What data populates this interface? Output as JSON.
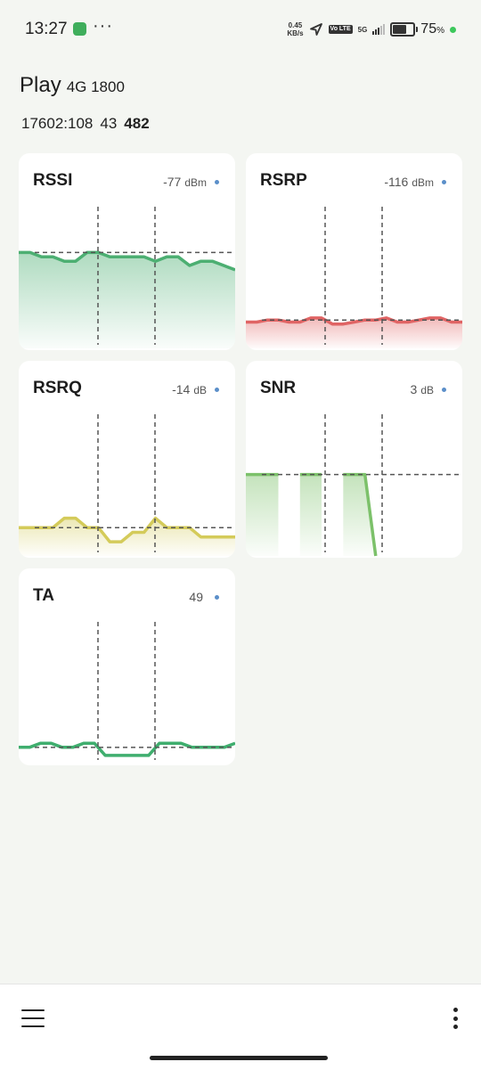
{
  "status_bar": {
    "time": "13:27",
    "notification_icon": "cast-app-icon",
    "more_dots": "···",
    "speed_value": "0.45",
    "speed_unit": "KB/s",
    "volte_label": "Vo LTE",
    "network_type": "5G",
    "battery_percent": "75",
    "battery_percent_sign": "%",
    "battery_level": 0.75
  },
  "cell": {
    "operator": "Play",
    "technology": "4G 1800",
    "cell_id": "17602:108",
    "pci": "43",
    "earfcn": "482"
  },
  "cards": [
    {
      "key": "rssi",
      "title": "RSSI",
      "value": "-77",
      "unit": "dBm",
      "color": "#4caf72",
      "fill": "gradient",
      "values": [
        -76,
        -76,
        -78,
        -78,
        -80,
        -80,
        -76,
        -76,
        -78,
        -78,
        -78,
        -78,
        -80,
        -78,
        -78,
        -82,
        -80,
        -80,
        -82,
        -84
      ],
      "ylim": [
        -120,
        -55
      ],
      "reference": -76
    },
    {
      "key": "rsrp",
      "title": "RSRP",
      "value": "-116",
      "unit": "dBm",
      "color": "#e06464",
      "fill": "gradient",
      "values": [
        -117,
        -117,
        -116,
        -116,
        -117,
        -117,
        -115,
        -115,
        -118,
        -118,
        -117,
        -116,
        -116,
        -115,
        -117,
        -117,
        -116,
        -115,
        -115,
        -117,
        -117
      ],
      "ylim": [
        -130,
        -60
      ],
      "reference": -116
    },
    {
      "key": "rsrq",
      "title": "RSRQ",
      "value": "-14",
      "unit": "dB",
      "color": "#d4cb5a",
      "fill": "gradient",
      "values": [
        -14,
        -14,
        -14,
        -14,
        -12,
        -12,
        -14,
        -14,
        -17,
        -17,
        -15,
        -15,
        -12,
        -14,
        -14,
        -14,
        -16,
        -16,
        -16,
        -16
      ],
      "ylim": [
        -20,
        10
      ],
      "reference": -14
    },
    {
      "key": "snr",
      "title": "SNR",
      "value": "3",
      "unit": "dB",
      "color": "#7cc16a",
      "fill": "segments",
      "segments": [
        [
          0,
          3
        ],
        [
          1,
          3
        ],
        [
          2,
          3
        ],
        [
          3,
          3
        ],
        null,
        [
          5,
          3
        ],
        [
          6,
          3
        ],
        [
          7,
          3
        ],
        null,
        [
          9,
          3
        ],
        [
          10,
          3
        ],
        [
          11,
          3
        ],
        [
          12,
          -20
        ]
      ],
      "x_count": 20,
      "ylim": [
        -20,
        20
      ],
      "reference": 3
    },
    {
      "key": "ta",
      "title": "TA",
      "value": "49",
      "unit": "",
      "color": "#3fae6e",
      "fill": "none",
      "values": [
        49,
        49,
        50,
        50,
        49,
        49,
        50,
        50,
        47,
        47,
        47,
        47,
        47,
        50,
        50,
        50,
        49,
        49,
        49,
        49,
        50
      ],
      "ylim": [
        45,
        80
      ],
      "reference": 49
    }
  ],
  "bottom_bar": {
    "menu_icon": "hamburger-menu-icon",
    "more_icon": "more-vertical-icon"
  }
}
